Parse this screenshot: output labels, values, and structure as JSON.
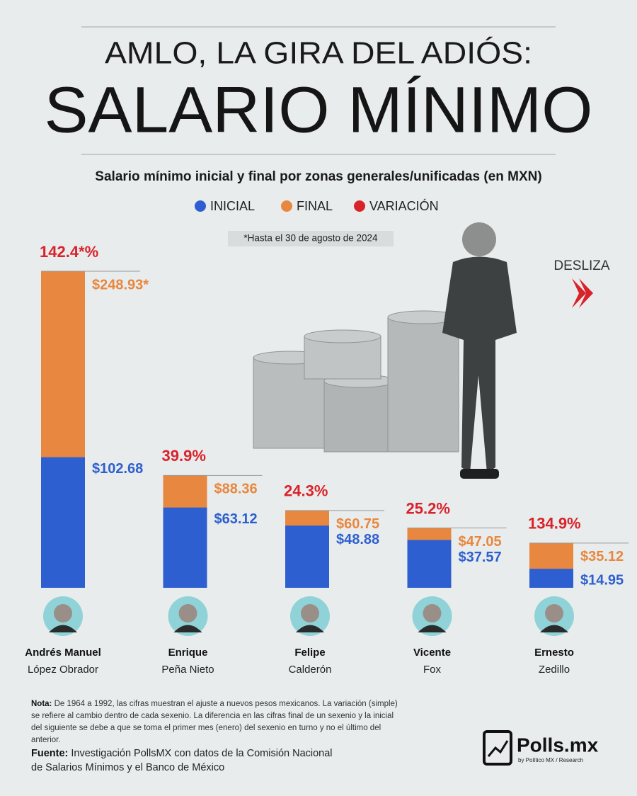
{
  "header": {
    "title_line1": "AMLO, LA GIRA DEL ADIÓS:",
    "title_line2": "SALARIO MÍNIMO"
  },
  "chart_data": {
    "type": "overlap-bar",
    "subtitle": "Salario mínimo inicial y final por zonas generales/unificadas (en MXN)",
    "footnote": "*Hasta el 30 de agosto de 2024",
    "categories": [
      [
        "Andrés Manuel",
        "López Obrador"
      ],
      [
        "Enrique",
        "Peña Nieto"
      ],
      [
        "Felipe",
        "Calderón"
      ],
      [
        "Vicente",
        "Fox"
      ],
      [
        "Ernesto",
        "Zedillo"
      ]
    ],
    "series": [
      {
        "name": "FINAL",
        "color": "#e8873f",
        "values": [
          248.93,
          88.36,
          60.75,
          47.05,
          35.12
        ],
        "value_labels": [
          "$248.93*",
          "$88.36",
          "$60.75",
          "$47.05",
          "$35.12"
        ]
      },
      {
        "name": "INICIAL",
        "color": "#2d5fd0",
        "values": [
          102.68,
          63.12,
          48.88,
          37.57,
          14.95
        ],
        "value_labels": [
          "$102.68",
          "$63.12",
          "$48.88",
          "$37.57",
          "$14.95"
        ]
      },
      {
        "name": "VARIACIÓN",
        "color": "#d9232b",
        "values": [
          142.4,
          39.9,
          24.3,
          25.2,
          134.9
        ],
        "value_labels": [
          "142.4*%",
          "39.9%",
          "24.3%",
          "25.2%",
          "134.9%"
        ]
      }
    ]
  },
  "swipe": "DESLIZA",
  "note": {
    "label": "Nota:",
    "text": "De 1964 a 1992, las cifras muestran el ajuste a nuevos pesos mexicanos. La variación (simple) se refiere al cambio dentro de cada sexenio. La diferencia en las cifras final de un sexenio y la inicial del siguiente se debe a que se toma el primer mes (enero) del sexenio en turno y no el último del anterior."
  },
  "source": {
    "label": "Fuente:",
    "text": "Investigación PollsMX con datos de la Comisión Nacional de Salarios Mínimos y el Banco de México"
  },
  "logo": {
    "name": "Polls.mx",
    "byline": "by Político MX / Research"
  }
}
